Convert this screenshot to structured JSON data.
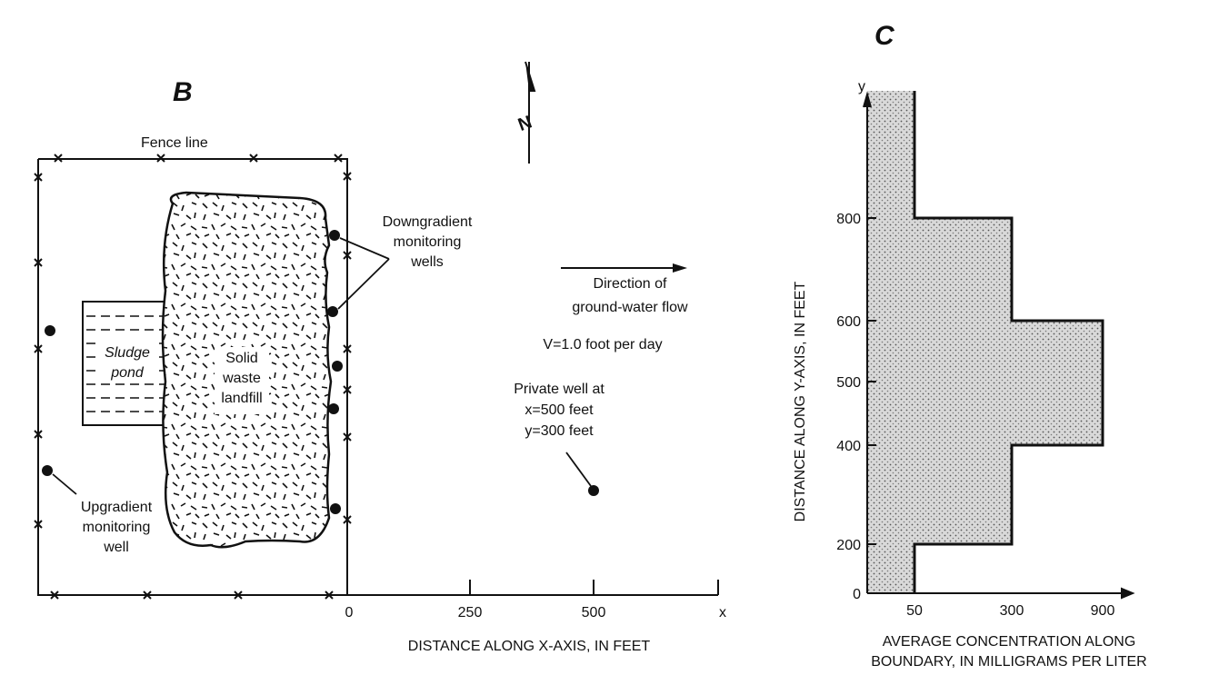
{
  "panel_b": {
    "letter": "B",
    "fence_label": "Fence line",
    "north_label": "N",
    "sludge_pond": [
      "Sludge",
      "pond"
    ],
    "landfill": [
      "Solid",
      "waste",
      "landfill"
    ],
    "downgradient": [
      "Downgradient",
      "monitoring",
      "wells"
    ],
    "upgradient": [
      "Upgradient",
      "monitoring",
      "well"
    ],
    "flow": [
      "Direction of",
      "ground-water flow"
    ],
    "velocity": "V=1.0 foot per day",
    "private_well": [
      "Private well at",
      "x=500 feet",
      "y=300 feet"
    ],
    "x_ticks": [
      "0",
      "250",
      "500"
    ],
    "x_axis_letter": "x",
    "x_axis_title": "DISTANCE ALONG X-AXIS, IN FEET"
  },
  "panel_c": {
    "letter": "C",
    "y_axis_letter": "y",
    "y_ticks": [
      "0",
      "200",
      "400",
      "500",
      "600",
      "800"
    ],
    "x_ticks": [
      "50",
      "300",
      "900"
    ],
    "y_axis_title": "DISTANCE ALONG Y-AXIS, IN FEET",
    "x_axis_title": [
      "AVERAGE CONCENTRATION ALONG",
      "BOUNDARY, IN MILLIGRAMS PER LITER"
    ]
  },
  "chart_data": {
    "type": "bar",
    "orientation": "horizontal-step",
    "xlabel": "AVERAGE CONCENTRATION ALONG BOUNDARY, IN MILLIGRAMS PER LITER",
    "ylabel": "DISTANCE ALONG Y-AXIS, IN FEET",
    "segments": [
      {
        "y_from": 0,
        "y_to": 200,
        "concentration": 50
      },
      {
        "y_from": 200,
        "y_to": 400,
        "concentration": 300
      },
      {
        "y_from": 400,
        "y_to": 600,
        "concentration": 900
      },
      {
        "y_from": 600,
        "y_to": 800,
        "concentration": 300
      },
      {
        "y_from": 800,
        "y_to": 1000,
        "concentration": 50
      }
    ]
  },
  "colors": {
    "ink": "#111111",
    "fill": "#cfcfcf"
  }
}
